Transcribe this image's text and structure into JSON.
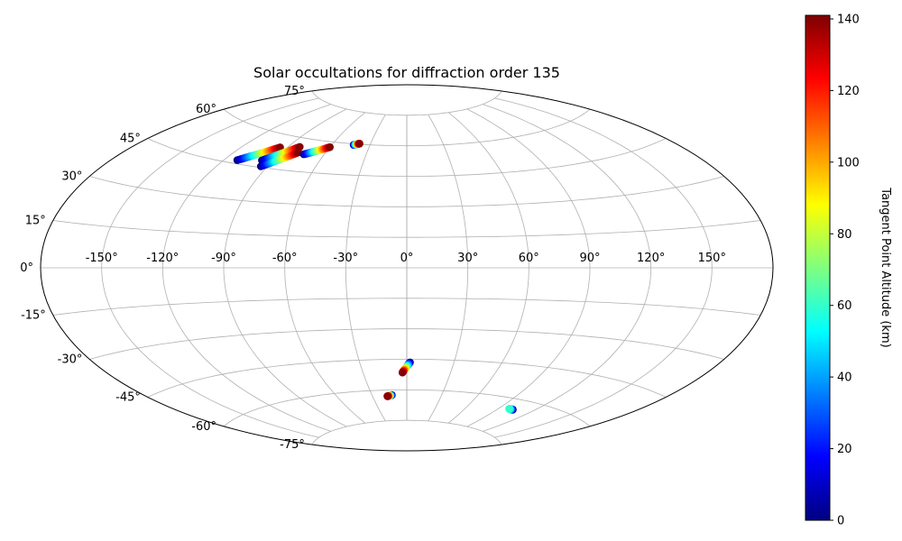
{
  "chart_data": {
    "type": "scatter",
    "projection": "aitoff",
    "title": "Solar occultations for diffraction order 135",
    "xlabel": "",
    "ylabel": "",
    "grid": true,
    "longitude_ticks": [
      -150,
      -120,
      -90,
      -60,
      -30,
      0,
      30,
      60,
      90,
      120,
      150
    ],
    "longitude_tick_labels": [
      "-150°",
      "-120°",
      "-90°",
      "-60°",
      "-30°",
      "0°",
      "30°",
      "60°",
      "90°",
      "120°",
      "150°"
    ],
    "latitude_ticks": [
      -75,
      -60,
      -45,
      -30,
      -15,
      0,
      15,
      30,
      45,
      60,
      75
    ],
    "latitude_tick_labels": [
      "-75°",
      "-60°",
      "-45°",
      "-30°",
      "-15°",
      "0°",
      "15°",
      "30°",
      "45°",
      "60°",
      "75°"
    ],
    "colorbar": {
      "label": "Tangent Point Altitude (km)",
      "range": [
        0,
        141
      ],
      "ticks": [
        0,
        20,
        40,
        60,
        80,
        100,
        120,
        140
      ],
      "tick_labels": [
        "0",
        "20",
        "40",
        "60",
        "80",
        "100",
        "120",
        "140"
      ],
      "colormap": "jet",
      "colors": [
        "#00007f",
        "#0000ff",
        "#007fff",
        "#00ffff",
        "#7fff7f",
        "#ffff00",
        "#ff7f00",
        "#ff0000",
        "#7f0000"
      ]
    },
    "tracks": [
      {
        "start_lon": -112,
        "start_lat": 46.5,
        "end_lon": -95,
        "end_lat": 54.5,
        "alt_start": 0,
        "alt_end": 140
      },
      {
        "start_lon": -97,
        "start_lat": 48.0,
        "end_lon": -82,
        "end_lat": 56.0,
        "alt_start": 0,
        "alt_end": 140
      },
      {
        "start_lon": -94,
        "start_lat": 45.5,
        "end_lon": -79,
        "end_lat": 53.5,
        "alt_start": 0,
        "alt_end": 140
      },
      {
        "start_lon": -74,
        "start_lat": 53.0,
        "end_lon": -60,
        "end_lat": 57.5,
        "alt_start": 0,
        "alt_end": 140
      },
      {
        "start_lon": -43,
        "start_lat": 59.5,
        "end_lon": -39,
        "end_lat": 60.3,
        "alt_start": 0,
        "alt_end": 140
      },
      {
        "start_lon": 2,
        "start_lat": -46.5,
        "end_lon": -3,
        "end_lat": -51.5,
        "alt_start": 0,
        "alt_end": 140
      },
      {
        "start_lon": -13,
        "start_lat": -62.5,
        "end_lon": -17,
        "end_lat": -63.0,
        "alt_start": 0,
        "alt_end": 140
      },
      {
        "start_lon": 103,
        "start_lat": -64.5,
        "end_lon": 99,
        "end_lat": -64.5,
        "alt_start": 0,
        "alt_end": 60
      }
    ]
  }
}
